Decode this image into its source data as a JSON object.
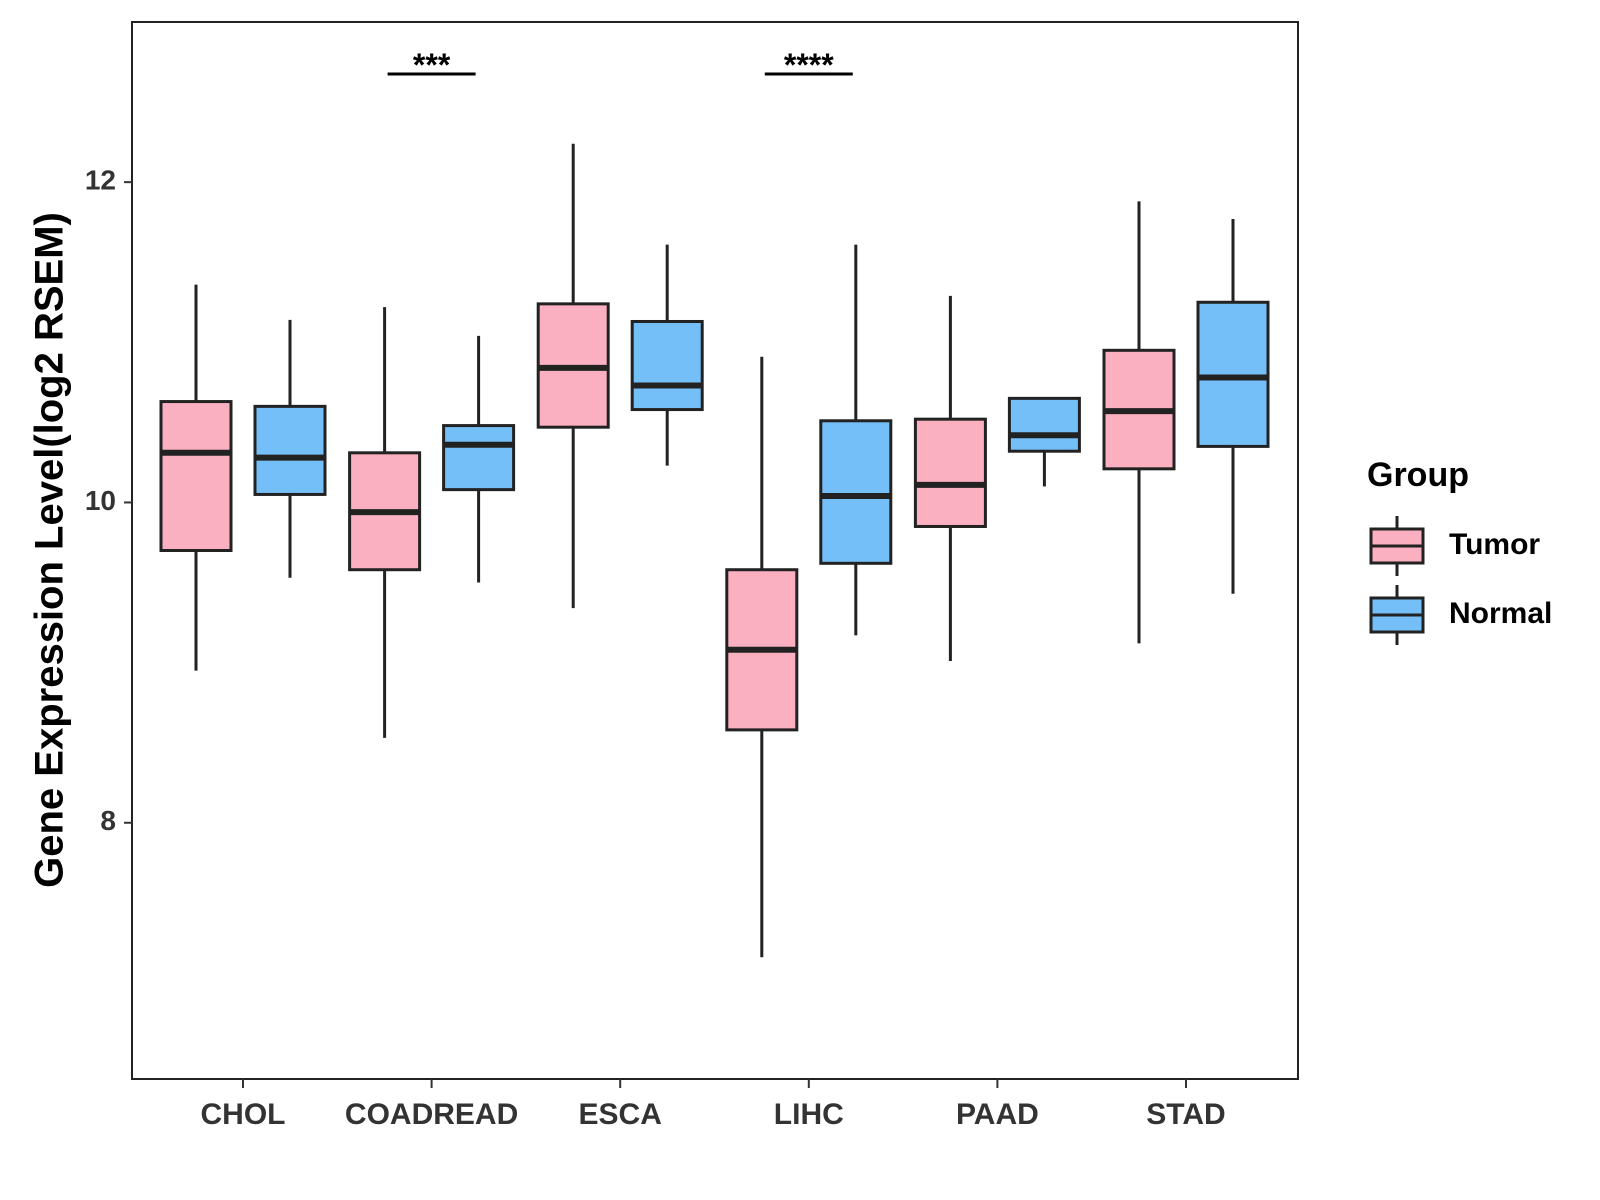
{
  "chart_data": {
    "type": "boxplot",
    "ylabel": "Gene Expression Level(log2 RSEM)",
    "xlabel": "",
    "ylim": [
      6.4,
      13.0
    ],
    "yticks": [
      8,
      10,
      12
    ],
    "categories": [
      "CHOL",
      "COADREAD",
      "ESCA",
      "LIHC",
      "PAAD",
      "STAD"
    ],
    "legend": {
      "title": "Group",
      "position": "right",
      "entries": [
        {
          "name": "Tumor",
          "color": "#FBB0C1"
        },
        {
          "name": "Normal",
          "color": "#75BFF8"
        }
      ]
    },
    "series": [
      {
        "name": "Tumor",
        "color": "#FBB0C1",
        "boxes": [
          {
            "category": "CHOL",
            "min": 8.95,
            "q1": 9.7,
            "median": 10.31,
            "q3": 10.63,
            "max": 11.36
          },
          {
            "category": "COADREAD",
            "min": 8.53,
            "q1": 9.58,
            "median": 9.94,
            "q3": 10.31,
            "max": 11.22
          },
          {
            "category": "ESCA",
            "min": 9.34,
            "q1": 10.47,
            "median": 10.84,
            "q3": 11.24,
            "max": 12.24
          },
          {
            "category": "LIHC",
            "min": 7.16,
            "q1": 8.58,
            "median": 9.08,
            "q3": 9.58,
            "max": 10.91
          },
          {
            "category": "PAAD",
            "min": 9.01,
            "q1": 9.85,
            "median": 10.11,
            "q3": 10.52,
            "max": 11.29
          },
          {
            "category": "STAD",
            "min": 9.12,
            "q1": 10.21,
            "median": 10.57,
            "q3": 10.95,
            "max": 11.88
          }
        ]
      },
      {
        "name": "Normal",
        "color": "#75BFF8",
        "boxes": [
          {
            "category": "CHOL",
            "min": 9.53,
            "q1": 10.05,
            "median": 10.28,
            "q3": 10.6,
            "max": 11.14
          },
          {
            "category": "COADREAD",
            "min": 9.5,
            "q1": 10.08,
            "median": 10.36,
            "q3": 10.48,
            "max": 11.04
          },
          {
            "category": "ESCA",
            "min": 10.23,
            "q1": 10.58,
            "median": 10.73,
            "q3": 11.13,
            "max": 11.61
          },
          {
            "category": "LIHC",
            "min": 9.17,
            "q1": 9.62,
            "median": 10.04,
            "q3": 10.51,
            "max": 11.61
          },
          {
            "category": "PAAD",
            "min": 10.1,
            "q1": 10.32,
            "median": 10.42,
            "q3": 10.65,
            "max": 10.65
          },
          {
            "category": "STAD",
            "min": 9.43,
            "q1": 10.35,
            "median": 10.78,
            "q3": 11.25,
            "max": 11.77
          }
        ]
      }
    ],
    "annotations": [
      {
        "category": "COADREAD",
        "label": "***"
      },
      {
        "category": "LIHC",
        "label": "****"
      }
    ],
    "grid": false
  }
}
